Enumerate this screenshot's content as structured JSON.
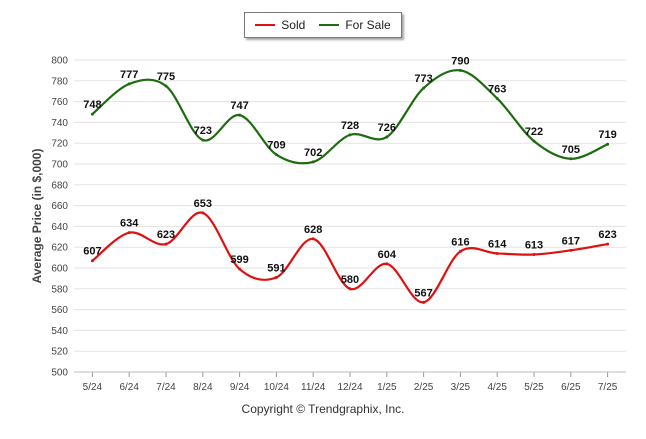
{
  "chart_data": {
    "type": "line",
    "title": "",
    "xlabel": "",
    "ylabel": "Average Price (in $,000)",
    "categories": [
      "5/24",
      "6/24",
      "7/24",
      "8/24",
      "9/24",
      "10/24",
      "11/24",
      "12/24",
      "1/25",
      "2/25",
      "3/25",
      "4/25",
      "5/25",
      "6/25",
      "7/25"
    ],
    "ylim": [
      500,
      800
    ],
    "yticks": [
      500,
      520,
      540,
      560,
      580,
      600,
      620,
      640,
      660,
      680,
      700,
      720,
      740,
      760,
      780,
      800
    ],
    "grid": true,
    "legend_position": "top-center",
    "series": [
      {
        "name": "Sold",
        "color": "#dd1111",
        "values": [
          607,
          634,
          623,
          653,
          599,
          591,
          628,
          580,
          604,
          567,
          616,
          614,
          613,
          617,
          623
        ]
      },
      {
        "name": "For Sale",
        "color": "#1e6b10",
        "values": [
          748,
          777,
          775,
          723,
          747,
          709,
          702,
          728,
          726,
          773,
          790,
          763,
          722,
          705,
          719
        ]
      }
    ]
  },
  "copyright": "Copyright © Trendgraphix, Inc."
}
